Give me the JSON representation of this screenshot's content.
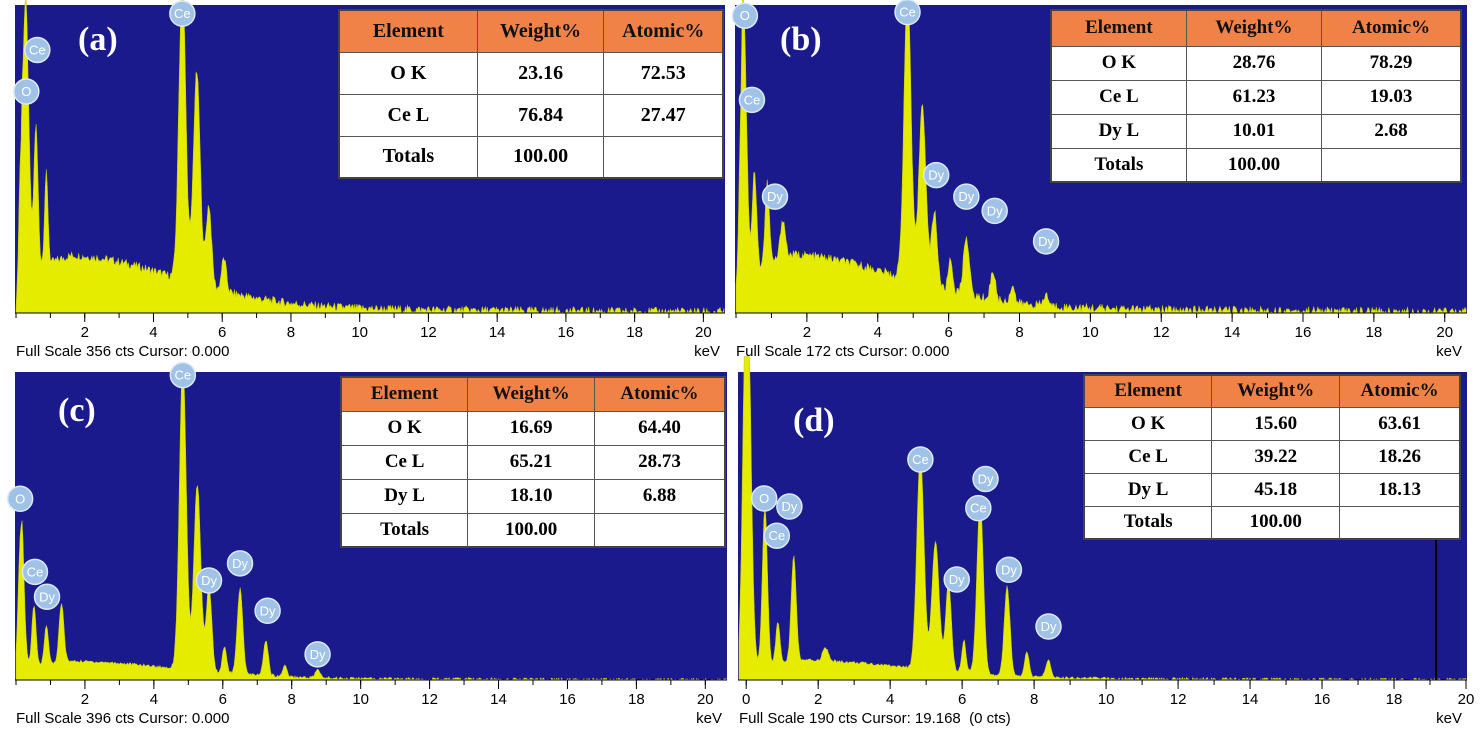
{
  "panels": [
    {
      "label": "(a)",
      "footer": "Full Scale 356 cts Cursor: 0.000",
      "unit": "keV",
      "table": {
        "headers": [
          "Element",
          "Weight%",
          "Atomic%"
        ],
        "rows": [
          [
            "O K",
            "23.16",
            "72.53"
          ],
          [
            "Ce L",
            "76.84",
            "27.47"
          ],
          [
            "Totals",
            "100.00",
            ""
          ]
        ]
      }
    },
    {
      "label": "(b)",
      "footer": "Full Scale 172 cts Cursor: 0.000",
      "unit": "keV",
      "table": {
        "headers": [
          "Element",
          "Weight%",
          "Atomic%"
        ],
        "rows": [
          [
            "O K",
            "28.76",
            "78.29"
          ],
          [
            "Ce L",
            "61.23",
            "19.03"
          ],
          [
            "Dy L",
            "10.01",
            "2.68"
          ],
          [
            "Totals",
            "100.00",
            ""
          ]
        ]
      }
    },
    {
      "label": "(c)",
      "footer": "Full Scale 396 cts Cursor: 0.000",
      "unit": "keV",
      "table": {
        "headers": [
          "Element",
          "Weight%",
          "Atomic%"
        ],
        "rows": [
          [
            "O K",
            "16.69",
            "64.40"
          ],
          [
            "Ce L",
            "65.21",
            "28.73"
          ],
          [
            "Dy L",
            "18.10",
            "6.88"
          ],
          [
            "Totals",
            "100.00",
            ""
          ]
        ]
      }
    },
    {
      "label": "(d)",
      "footer": "Full Scale 190 cts Cursor: 19.168  (0 cts)",
      "unit": "keV",
      "table": {
        "headers": [
          "Element",
          "Weight%",
          "Atomic%"
        ],
        "rows": [
          [
            "O K",
            "15.60",
            "63.61"
          ],
          [
            "Ce L",
            "39.22",
            "18.26"
          ],
          [
            "Dy L",
            "45.18",
            "18.13"
          ],
          [
            "Totals",
            "100.00",
            ""
          ]
        ]
      }
    }
  ],
  "chart_data": [
    {
      "type": "area",
      "xlabel": "keV",
      "xlim": [
        0,
        20.6
      ],
      "ylim": [
        0,
        356
      ],
      "x_ticks": [
        2,
        4,
        6,
        8,
        10,
        12,
        14,
        16,
        18,
        20
      ],
      "colors": {
        "plot_background": "#1a1a8c",
        "spectrum": "#e6ec00",
        "header": "#f08248"
      },
      "baseline": 55,
      "peaks": [
        {
          "x": 0.12,
          "y": 110,
          "w": 0.05
        },
        {
          "x": 0.28,
          "y": 315,
          "w": 0.09
        },
        {
          "x": 0.58,
          "y": 165,
          "w": 0.06
        },
        {
          "x": 0.88,
          "y": 105,
          "w": 0.05
        },
        {
          "x": 4.84,
          "y": 350,
          "w": 0.1
        },
        {
          "x": 5.26,
          "y": 245,
          "w": 0.1
        },
        {
          "x": 5.61,
          "y": 95,
          "w": 0.08
        },
        {
          "x": 6.05,
          "y": 38,
          "w": 0.07
        }
      ],
      "peak_labels": [
        {
          "name": "O",
          "x": 0.3,
          "y": 256
        },
        {
          "name": "Ce",
          "x": 0.62,
          "y": 304
        },
        {
          "name": "Ce",
          "x": 4.84,
          "y": 346
        }
      ],
      "cursor": null
    },
    {
      "type": "area",
      "xlabel": "keV",
      "xlim": [
        0,
        20.6
      ],
      "ylim": [
        0,
        172
      ],
      "x_ticks": [
        2,
        4,
        6,
        8,
        10,
        12,
        14,
        16,
        18,
        20
      ],
      "colors": {
        "plot_background": "#1a1a8c",
        "spectrum": "#e6ec00",
        "header": "#f08248"
      },
      "baseline": 27,
      "peaks": [
        {
          "x": 0.2,
          "y": 158,
          "w": 0.09
        },
        {
          "x": 0.52,
          "y": 55,
          "w": 0.06
        },
        {
          "x": 0.88,
          "y": 45,
          "w": 0.06
        },
        {
          "x": 1.32,
          "y": 22,
          "w": 0.07
        },
        {
          "x": 4.84,
          "y": 165,
          "w": 0.1
        },
        {
          "x": 5.26,
          "y": 101,
          "w": 0.1
        },
        {
          "x": 5.6,
          "y": 42,
          "w": 0.08
        },
        {
          "x": 6.05,
          "y": 18,
          "w": 0.06
        },
        {
          "x": 6.5,
          "y": 33,
          "w": 0.08
        },
        {
          "x": 7.25,
          "y": 16,
          "w": 0.07
        },
        {
          "x": 7.8,
          "y": 10,
          "w": 0.06
        },
        {
          "x": 8.75,
          "y": 6,
          "w": 0.07
        }
      ],
      "peak_labels": [
        {
          "name": "O",
          "x": 0.25,
          "y": 166
        },
        {
          "name": "Ce",
          "x": 0.45,
          "y": 119
        },
        {
          "name": "Ce",
          "x": 4.84,
          "y": 168
        },
        {
          "name": "Dy",
          "x": 1.1,
          "y": 65
        },
        {
          "name": "Dy",
          "x": 5.65,
          "y": 77
        },
        {
          "name": "Dy",
          "x": 6.5,
          "y": 65
        },
        {
          "name": "Dy",
          "x": 7.3,
          "y": 57
        },
        {
          "name": "Dy",
          "x": 8.75,
          "y": 40
        }
      ],
      "cursor": null
    },
    {
      "type": "area",
      "xlabel": "keV",
      "xlim": [
        0,
        20.6
      ],
      "ylim": [
        0,
        396
      ],
      "x_ticks": [
        2,
        4,
        6,
        8,
        10,
        12,
        14,
        16,
        18,
        20
      ],
      "colors": {
        "plot_background": "#1a1a8c",
        "spectrum": "#e6ec00",
        "header": "#f08248"
      },
      "baseline": 20,
      "peaks": [
        {
          "x": 0.15,
          "y": 200,
          "w": 0.08
        },
        {
          "x": 0.52,
          "y": 78,
          "w": 0.06
        },
        {
          "x": 0.88,
          "y": 50,
          "w": 0.06
        },
        {
          "x": 1.32,
          "y": 75,
          "w": 0.07
        },
        {
          "x": 4.84,
          "y": 393,
          "w": 0.1
        },
        {
          "x": 5.26,
          "y": 240,
          "w": 0.1
        },
        {
          "x": 5.6,
          "y": 110,
          "w": 0.08
        },
        {
          "x": 6.05,
          "y": 35,
          "w": 0.06
        },
        {
          "x": 6.5,
          "y": 110,
          "w": 0.08
        },
        {
          "x": 7.25,
          "y": 45,
          "w": 0.07
        },
        {
          "x": 7.8,
          "y": 15,
          "w": 0.06
        },
        {
          "x": 8.75,
          "y": 10,
          "w": 0.07
        }
      ],
      "peak_labels": [
        {
          "name": "O",
          "x": 0.12,
          "y": 233
        },
        {
          "name": "Ce",
          "x": 0.55,
          "y": 139
        },
        {
          "name": "Dy",
          "x": 0.9,
          "y": 107
        },
        {
          "name": "Ce",
          "x": 4.84,
          "y": 392
        },
        {
          "name": "Dy",
          "x": 5.6,
          "y": 128
        },
        {
          "name": "Dy",
          "x": 6.5,
          "y": 150
        },
        {
          "name": "Dy",
          "x": 7.3,
          "y": 89
        },
        {
          "name": "Dy",
          "x": 8.75,
          "y": 33
        }
      ],
      "cursor": null
    },
    {
      "type": "area",
      "xlabel": "keV",
      "xlim": [
        -0.2,
        20.0
      ],
      "ylim": [
        0,
        190
      ],
      "x_ticks": [
        0,
        2,
        4,
        6,
        8,
        10,
        12,
        14,
        16,
        18,
        20
      ],
      "colors": {
        "plot_background": "#1a1a8c",
        "spectrum": "#e6ec00",
        "header": "#f08248"
      },
      "baseline": 10,
      "peaks": [
        {
          "x": 0.02,
          "y": 280,
          "w": 0.1
        },
        {
          "x": 0.52,
          "y": 98,
          "w": 0.07
        },
        {
          "x": 0.88,
          "y": 25,
          "w": 0.06
        },
        {
          "x": 1.32,
          "y": 65,
          "w": 0.07
        },
        {
          "x": 2.2,
          "y": 8,
          "w": 0.08
        },
        {
          "x": 4.84,
          "y": 133,
          "w": 0.1
        },
        {
          "x": 5.26,
          "y": 79,
          "w": 0.1
        },
        {
          "x": 5.62,
          "y": 55,
          "w": 0.08
        },
        {
          "x": 6.05,
          "y": 20,
          "w": 0.06
        },
        {
          "x": 6.5,
          "y": 107,
          "w": 0.09
        },
        {
          "x": 7.25,
          "y": 55,
          "w": 0.08
        },
        {
          "x": 7.8,
          "y": 15,
          "w": 0.06
        },
        {
          "x": 8.4,
          "y": 10,
          "w": 0.07
        }
      ],
      "peak_labels": [
        {
          "name": "O",
          "x": 0.5,
          "y": 112
        },
        {
          "name": "Dy",
          "x": 1.2,
          "y": 107
        },
        {
          "name": "Ce",
          "x": 0.85,
          "y": 89
        },
        {
          "name": "Ce",
          "x": 4.84,
          "y": 136
        },
        {
          "name": "Dy",
          "x": 6.65,
          "y": 124
        },
        {
          "name": "Ce",
          "x": 6.45,
          "y": 106
        },
        {
          "name": "Dy",
          "x": 5.85,
          "y": 62
        },
        {
          "name": "Dy",
          "x": 7.3,
          "y": 68
        },
        {
          "name": "Dy",
          "x": 8.4,
          "y": 33
        }
      ],
      "cursor": 19.168
    }
  ]
}
